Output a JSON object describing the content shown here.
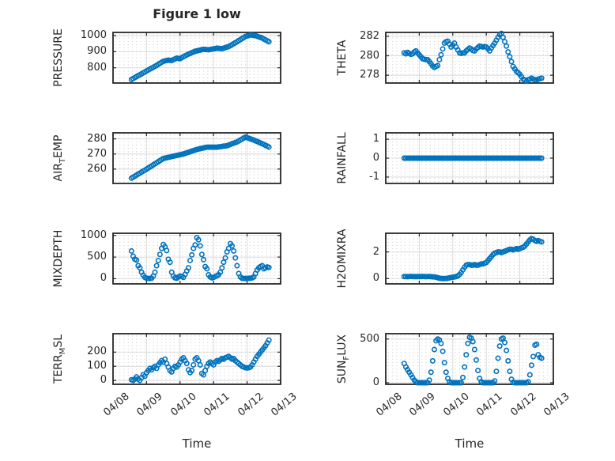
{
  "figure": {
    "title": "Figure 1 low"
  },
  "chart_data": {
    "type": "scatter",
    "title": "Figure 1 low",
    "xlabel": "Time",
    "xlim": [
      0,
      5
    ],
    "xticks": [
      0,
      1,
      2,
      3,
      4,
      5
    ],
    "xtick_labels": [
      "04/08",
      "04/09",
      "04/10",
      "04/11",
      "04/12",
      "04/13"
    ],
    "marker": "open-circle",
    "grid": true,
    "minor_grid": true,
    "legend_position": "none",
    "colors": {
      "marker": "#0072BD",
      "axis": "#262626",
      "grid_major": "#dbdbdb",
      "grid_minor_dot": "#c8c8c8",
      "background": "#ffffff"
    },
    "subplots": [
      {
        "id": "pressure",
        "ylabel": {
          "pre": "PRESSURE",
          "sub": "",
          "post": ""
        },
        "yticks": [
          "800",
          "900",
          "1000"
        ],
        "ylim": [
          705,
          1020
        ],
        "x_start": 0.55,
        "x_step": 0.05,
        "values": [
          727,
          733,
          739,
          745,
          751,
          756,
          762,
          768,
          774,
          780,
          786,
          792,
          798,
          803,
          809,
          815,
          821,
          828,
          834,
          840,
          843,
          845,
          848,
          846,
          845,
          850,
          855,
          860,
          858,
          857,
          863,
          869,
          874,
          880,
          885,
          889,
          894,
          898,
          903,
          905,
          908,
          910,
          913,
          915,
          914,
          913,
          912,
          914,
          916,
          918,
          920,
          922,
          921,
          920,
          919,
          922,
          925,
          929,
          932,
          938,
          944,
          950,
          956,
          962,
          969,
          975,
          982,
          988,
          995,
          998,
          1001,
          1004,
          1003,
          1001,
          1000,
          996,
          992,
          989,
          985,
          979,
          973,
          968,
          962
        ]
      },
      {
        "id": "theta",
        "ylabel": {
          "pre": "THETA",
          "sub": "",
          "post": ""
        },
        "yticks": [
          "278",
          "280",
          "282"
        ],
        "ylim": [
          277.2,
          282.4
        ],
        "x_start": 0.55,
        "x_step": 0.05,
        "values": [
          280.3,
          280.2,
          280.35,
          280.25,
          280.15,
          280.2,
          280.4,
          280.5,
          280.3,
          280.1,
          279.9,
          279.7,
          279.65,
          279.6,
          279.6,
          279.4,
          279.2,
          278.95,
          278.8,
          278.9,
          279.0,
          279.6,
          280.1,
          280.7,
          281.3,
          281.45,
          281.5,
          281.2,
          280.9,
          281.1,
          281.3,
          280.9,
          280.6,
          280.3,
          280.25,
          280.3,
          280.3,
          280.5,
          280.65,
          280.8,
          280.7,
          280.55,
          280.5,
          280.7,
          280.85,
          281.0,
          280.95,
          280.9,
          280.95,
          280.9,
          280.7,
          280.5,
          280.8,
          281.05,
          281.3,
          281.6,
          281.9,
          282.15,
          282.3,
          281.9,
          281.45,
          281.0,
          280.4,
          279.9,
          279.4,
          278.9,
          278.65,
          278.4,
          278.25,
          278.1,
          277.85,
          277.6,
          277.5,
          277.4,
          277.55,
          277.6,
          277.7,
          277.6,
          277.55,
          277.5,
          277.6,
          277.65,
          277.7
        ]
      },
      {
        "id": "air-temp",
        "ylabel": {
          "pre": "AIR",
          "sub": "T",
          "post": "EMP"
        },
        "yticks": [
          "260",
          "270",
          "280"
        ],
        "ylim": [
          250.5,
          284
        ],
        "x_start": 0.55,
        "x_step": 0.05,
        "values": [
          254.0,
          254.7,
          255.3,
          256.0,
          256.7,
          257.3,
          258.0,
          258.7,
          259.3,
          260.0,
          260.7,
          261.4,
          262.1,
          262.8,
          263.5,
          264.2,
          264.9,
          265.6,
          266.3,
          267.0,
          267.3,
          267.5,
          267.8,
          268.0,
          268.3,
          268.5,
          268.8,
          269.0,
          269.3,
          269.5,
          269.8,
          270.0,
          270.4,
          270.8,
          271.1,
          271.5,
          271.9,
          272.3,
          272.6,
          273.0,
          273.3,
          273.5,
          273.8,
          274.0,
          274.3,
          274.5,
          274.5,
          274.5,
          274.5,
          274.5,
          274.5,
          274.5,
          274.7,
          274.8,
          275.0,
          275.2,
          275.3,
          275.5,
          275.9,
          276.3,
          276.8,
          277.2,
          277.6,
          278.0,
          278.6,
          279.3,
          279.9,
          280.6,
          281.2,
          280.8,
          280.4,
          280.0,
          279.6,
          279.2,
          278.7,
          278.3,
          277.8,
          277.3,
          276.8,
          276.3,
          275.7,
          275.2,
          274.6
        ]
      },
      {
        "id": "rainfall",
        "ylabel": {
          "pre": "RAINFALL",
          "sub": "",
          "post": ""
        },
        "yticks": [
          "-1",
          "0",
          "1"
        ],
        "ylim": [
          -1.34,
          1.34
        ],
        "x_start": 0.55,
        "x_step": 0.05,
        "values": [
          0,
          0,
          0,
          0,
          0,
          0,
          0,
          0,
          0,
          0,
          0,
          0,
          0,
          0,
          0,
          0,
          0,
          0,
          0,
          0,
          0,
          0,
          0,
          0,
          0,
          0,
          0,
          0,
          0,
          0,
          0,
          0,
          0,
          0,
          0,
          0,
          0,
          0,
          0,
          0,
          0,
          0,
          0,
          0,
          0,
          0,
          0,
          0,
          0,
          0,
          0,
          0,
          0,
          0,
          0,
          0,
          0,
          0,
          0,
          0,
          0,
          0,
          0,
          0,
          0,
          0,
          0,
          0,
          0,
          0,
          0,
          0,
          0,
          0,
          0,
          0,
          0,
          0,
          0,
          0,
          0,
          0,
          0
        ]
      },
      {
        "id": "mixdepth",
        "ylabel": {
          "pre": "MIXDEPTH",
          "sub": "",
          "post": ""
        },
        "yticks": [
          "0",
          "500",
          "1000"
        ],
        "ylim": [
          -120,
          1050
        ],
        "x_start": 0.55,
        "x_step": 0.05,
        "values": [
          640,
          520,
          450,
          430,
          300,
          250,
          150,
          80,
          30,
          10,
          5,
          5,
          10,
          60,
          150,
          300,
          420,
          560,
          700,
          790,
          740,
          650,
          450,
          380,
          150,
          60,
          20,
          10,
          40,
          60,
          50,
          30,
          100,
          180,
          250,
          420,
          550,
          700,
          780,
          950,
          900,
          760,
          560,
          440,
          280,
          230,
          90,
          40,
          20,
          30,
          50,
          70,
          90,
          150,
          250,
          380,
          480,
          620,
          700,
          810,
          760,
          640,
          480,
          300,
          120,
          40,
          10,
          5,
          5,
          5,
          10,
          10,
          20,
          40,
          120,
          200,
          250,
          280,
          300,
          230,
          250,
          270,
          260
        ]
      },
      {
        "id": "h2omixra",
        "ylabel": {
          "pre": "H2OMIXRA",
          "sub": "",
          "post": ""
        },
        "yticks": [
          "0",
          "2"
        ],
        "ylim": [
          -0.4,
          3.4
        ],
        "x_start": 0.55,
        "x_step": 0.05,
        "values": [
          0.15,
          0.15,
          0.14,
          0.15,
          0.16,
          0.15,
          0.15,
          0.14,
          0.15,
          0.15,
          0.15,
          0.16,
          0.15,
          0.14,
          0.15,
          0.15,
          0.14,
          0.13,
          0.12,
          0.1,
          0.06,
          0.03,
          0.01,
          0.0,
          0.0,
          0.01,
          0.02,
          0.05,
          0.08,
          0.1,
          0.12,
          0.15,
          0.2,
          0.3,
          0.45,
          0.65,
          0.85,
          1.0,
          1.05,
          1.05,
          1.0,
          1.0,
          1.05,
          1.0,
          1.0,
          1.05,
          1.1,
          1.1,
          1.15,
          1.2,
          1.35,
          1.5,
          1.65,
          1.8,
          1.9,
          1.95,
          2.0,
          2.0,
          1.95,
          2.0,
          2.05,
          2.1,
          2.15,
          2.2,
          2.2,
          2.15,
          2.2,
          2.25,
          2.2,
          2.25,
          2.3,
          2.35,
          2.45,
          2.6,
          2.75,
          2.9,
          3.0,
          2.95,
          2.85,
          2.8,
          2.85,
          2.8,
          2.75
        ]
      },
      {
        "id": "terr-msl",
        "ylabel": {
          "pre": "TERR",
          "sub": "M",
          "post": "SL"
        },
        "yticks": [
          "0",
          "100",
          "200"
        ],
        "ylim": [
          -27,
          330
        ],
        "x_start": 0.55,
        "x_step": 0.05,
        "values": [
          5,
          0,
          10,
          25,
          10,
          0,
          20,
          40,
          30,
          55,
          70,
          85,
          75,
          90,
          100,
          85,
          110,
          125,
          140,
          130,
          150,
          120,
          95,
          70,
          60,
          85,
          100,
          95,
          110,
          130,
          150,
          160,
          140,
          120,
          75,
          55,
          70,
          110,
          150,
          160,
          140,
          110,
          50,
          40,
          70,
          100,
          120,
          130,
          120,
          110,
          130,
          140,
          135,
          145,
          155,
          150,
          160,
          165,
          170,
          160,
          150,
          155,
          140,
          130,
          120,
          110,
          100,
          95,
          90,
          88,
          90,
          95,
          110,
          130,
          150,
          170,
          185,
          200,
          215,
          230,
          245,
          265,
          285
        ]
      },
      {
        "id": "sun-flux",
        "ylabel": {
          "pre": "SUN",
          "sub": "F",
          "post": "LUX"
        },
        "yticks": [
          "0",
          "500"
        ],
        "ylim": [
          -18,
          561
        ],
        "x_start": 0.55,
        "x_step": 0.05,
        "values": [
          220,
          180,
          150,
          120,
          90,
          60,
          30,
          10,
          0,
          0,
          0,
          0,
          0,
          0,
          0,
          30,
          120,
          250,
          380,
          480,
          500,
          490,
          450,
          360,
          230,
          120,
          50,
          10,
          0,
          0,
          0,
          0,
          0,
          0,
          0,
          60,
          180,
          320,
          450,
          520,
          510,
          470,
          380,
          260,
          140,
          50,
          10,
          0,
          0,
          0,
          0,
          0,
          0,
          0,
          20,
          130,
          280,
          420,
          500,
          510,
          460,
          370,
          250,
          130,
          40,
          5,
          0,
          0,
          0,
          0,
          0,
          0,
          0,
          0,
          10,
          90,
          200,
          300,
          430,
          440,
          320,
          290,
          280
        ]
      }
    ]
  }
}
